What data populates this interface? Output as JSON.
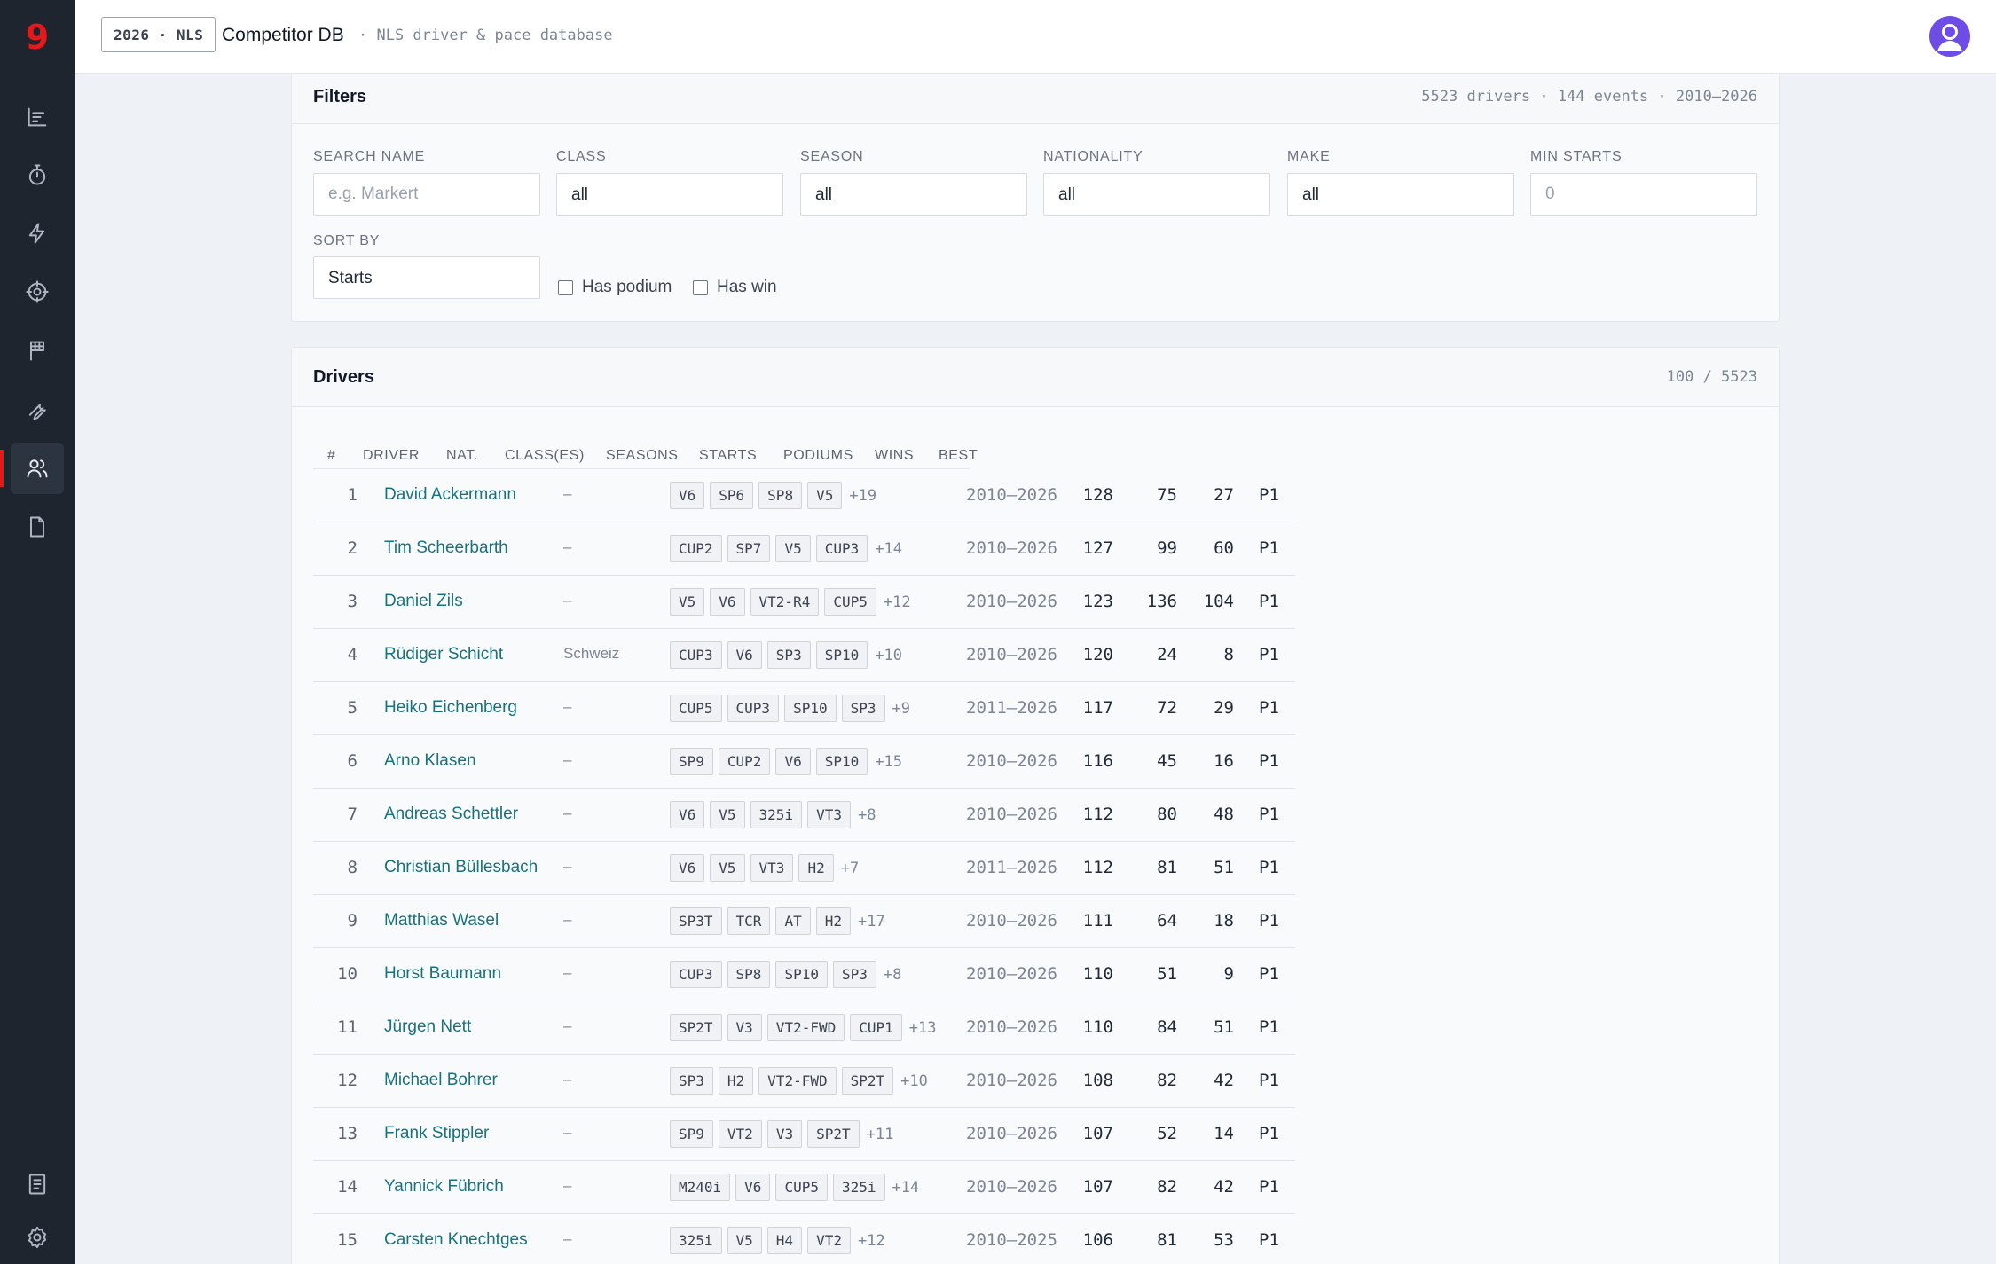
{
  "app": {
    "logo": "9",
    "season_badge": "2026 · NLS",
    "title": "Competitor DB",
    "subtitle": "· NLS driver & pace database"
  },
  "sidebar": {
    "items": [
      {
        "name": "results",
        "icon": "chart-bars-icon"
      },
      {
        "name": "timing",
        "icon": "stopwatch-icon"
      },
      {
        "name": "pace",
        "icon": "lightning-icon"
      },
      {
        "name": "tracking",
        "icon": "target-icon"
      },
      {
        "name": "races",
        "icon": "flag-icon"
      },
      {
        "name": "setup",
        "icon": "wrench-icon"
      },
      {
        "name": "competitors",
        "icon": "users-icon",
        "active": true
      },
      {
        "name": "documents",
        "icon": "document-icon"
      }
    ],
    "bottom": [
      {
        "name": "logbook",
        "icon": "notebook-icon"
      },
      {
        "name": "settings",
        "icon": "gear-icon"
      }
    ]
  },
  "filters": {
    "title": "Filters",
    "meta": "5523 drivers · 144 events · 2010–2026",
    "search_label": "SEARCH NAME",
    "search_placeholder": "e.g. Markert",
    "search_value": "",
    "class_label": "CLASS",
    "class_value": "all",
    "season_label": "SEASON",
    "season_value": "all",
    "nationality_label": "NATIONALITY",
    "nationality_value": "all",
    "make_label": "MAKE",
    "make_value": "all",
    "min_starts_label": "MIN STARTS",
    "min_starts_placeholder": "0",
    "sort_label": "SORT BY",
    "sort_value": "Starts",
    "has_podium": "Has podium",
    "has_win": "Has win"
  },
  "drivers": {
    "title": "Drivers",
    "meta": "100 / 5523",
    "columns": [
      "#",
      "DRIVER",
      "NAT.",
      "CLASS(ES)",
      "SEASONS",
      "STARTS",
      "PODIUMS",
      "WINS",
      "BEST"
    ],
    "rows": [
      {
        "rank": "1",
        "name": "David Ackermann",
        "nat": "–",
        "classes": [
          "V6",
          "SP6",
          "SP8",
          "V5"
        ],
        "more": "+19",
        "seasons": "2010–2026",
        "starts": "128",
        "podiums": "75",
        "wins": "27",
        "best": "P1"
      },
      {
        "rank": "2",
        "name": "Tim Scheerbarth",
        "nat": "–",
        "classes": [
          "CUP2",
          "SP7",
          "V5",
          "CUP3"
        ],
        "more": "+14",
        "seasons": "2010–2026",
        "starts": "127",
        "podiums": "99",
        "wins": "60",
        "best": "P1"
      },
      {
        "rank": "3",
        "name": "Daniel Zils",
        "nat": "–",
        "classes": [
          "V5",
          "V6",
          "VT2-R4",
          "CUP5"
        ],
        "more": "+12",
        "seasons": "2010–2026",
        "starts": "123",
        "podiums": "136",
        "wins": "104",
        "best": "P1"
      },
      {
        "rank": "4",
        "name": "Rüdiger Schicht",
        "nat": "Schweiz",
        "classes": [
          "CUP3",
          "V6",
          "SP3",
          "SP10"
        ],
        "more": "+10",
        "seasons": "2010–2026",
        "starts": "120",
        "podiums": "24",
        "wins": "8",
        "best": "P1"
      },
      {
        "rank": "5",
        "name": "Heiko Eichenberg",
        "nat": "–",
        "classes": [
          "CUP5",
          "CUP3",
          "SP10",
          "SP3"
        ],
        "more": "+9",
        "seasons": "2011–2026",
        "starts": "117",
        "podiums": "72",
        "wins": "29",
        "best": "P1"
      },
      {
        "rank": "6",
        "name": "Arno Klasen",
        "nat": "–",
        "classes": [
          "SP9",
          "CUP2",
          "V6",
          "SP10"
        ],
        "more": "+15",
        "seasons": "2010–2026",
        "starts": "116",
        "podiums": "45",
        "wins": "16",
        "best": "P1"
      },
      {
        "rank": "7",
        "name": "Andreas Schettler",
        "nat": "–",
        "classes": [
          "V6",
          "V5",
          "325i",
          "VT3"
        ],
        "more": "+8",
        "seasons": "2010–2026",
        "starts": "112",
        "podiums": "80",
        "wins": "48",
        "best": "P1"
      },
      {
        "rank": "8",
        "name": "Christian Büllesbach",
        "nat": "–",
        "classes": [
          "V6",
          "V5",
          "VT3",
          "H2"
        ],
        "more": "+7",
        "seasons": "2011–2026",
        "starts": "112",
        "podiums": "81",
        "wins": "51",
        "best": "P1"
      },
      {
        "rank": "9",
        "name": "Matthias Wasel",
        "nat": "–",
        "classes": [
          "SP3T",
          "TCR",
          "AT",
          "H2"
        ],
        "more": "+17",
        "seasons": "2010–2026",
        "starts": "111",
        "podiums": "64",
        "wins": "18",
        "best": "P1"
      },
      {
        "rank": "10",
        "name": "Horst Baumann",
        "nat": "–",
        "classes": [
          "CUP3",
          "SP8",
          "SP10",
          "SP3"
        ],
        "more": "+8",
        "seasons": "2010–2026",
        "starts": "110",
        "podiums": "51",
        "wins": "9",
        "best": "P1"
      },
      {
        "rank": "11",
        "name": "Jürgen Nett",
        "nat": "–",
        "classes": [
          "SP2T",
          "V3",
          "VT2-FWD",
          "CUP1"
        ],
        "more": "+13",
        "seasons": "2010–2026",
        "starts": "110",
        "podiums": "84",
        "wins": "51",
        "best": "P1"
      },
      {
        "rank": "12",
        "name": "Michael Bohrer",
        "nat": "–",
        "classes": [
          "SP3",
          "H2",
          "VT2-FWD",
          "SP2T"
        ],
        "more": "+10",
        "seasons": "2010–2026",
        "starts": "108",
        "podiums": "82",
        "wins": "42",
        "best": "P1"
      },
      {
        "rank": "13",
        "name": "Frank Stippler",
        "nat": "–",
        "classes": [
          "SP9",
          "VT2",
          "V3",
          "SP2T"
        ],
        "more": "+11",
        "seasons": "2010–2026",
        "starts": "107",
        "podiums": "52",
        "wins": "14",
        "best": "P1"
      },
      {
        "rank": "14",
        "name": "Yannick Fübrich",
        "nat": "–",
        "classes": [
          "M240i",
          "V6",
          "CUP5",
          "325i"
        ],
        "more": "+14",
        "seasons": "2010–2026",
        "starts": "107",
        "podiums": "82",
        "wins": "42",
        "best": "P1"
      },
      {
        "rank": "15",
        "name": "Carsten Knechtges",
        "nat": "–",
        "classes": [
          "325i",
          "V5",
          "H4",
          "VT2"
        ],
        "more": "+12",
        "seasons": "2010–2025",
        "starts": "106",
        "podiums": "81",
        "wins": "53",
        "best": "P1"
      }
    ]
  }
}
